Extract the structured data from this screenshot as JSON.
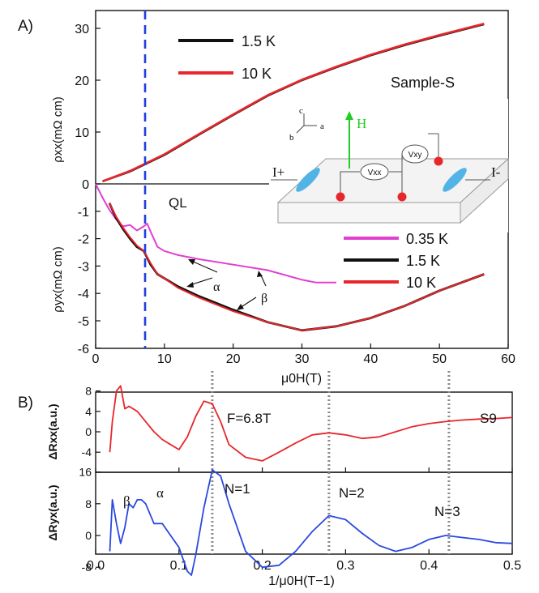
{
  "colors": {
    "black": "#111111",
    "red": "#e8262b",
    "magenta": "#e03fd0",
    "blue": "#2b48e0",
    "dash_blue": "#1f3fe0",
    "dotted_gray": "#8a8a8a",
    "green": "#22cc22",
    "sample_blue": "#52b4e6"
  },
  "panel_a": {
    "label": "A)",
    "ylabel_top": "ρxx(mΩ cm)",
    "ylabel_bottom": "ρyx(mΩ cm)",
    "xlabel": "μ0H(T)",
    "sample_label": "Sample-S",
    "ql_label": "QL",
    "legend_top": [
      {
        "name": "1.5 K",
        "color": "#111111"
      },
      {
        "name": "10 K",
        "color": "#e8262b"
      }
    ],
    "legend_bottom": [
      {
        "name": "0.35 K",
        "color": "#e03fd0"
      },
      {
        "name": "1.5 K",
        "color": "#111111"
      },
      {
        "name": "10 K",
        "color": "#e8262b"
      }
    ],
    "alpha": "α",
    "beta": "β",
    "inset": {
      "h_label": "H",
      "i_plus": "I+",
      "i_minus": "I-",
      "vxx": "Vxx",
      "vxy": "Vxy",
      "axis_a": "a",
      "axis_b": "b",
      "axis_c": "c"
    }
  },
  "panel_b": {
    "label": "B)",
    "ylabel_top": "ΔRxx(a.u.)",
    "ylabel_bottom": "ΔRyx(a.u.)",
    "xlabel": "1/μ0H(T−1)",
    "freq_label": "F=6.8T",
    "sample_label": "S9",
    "beta": "β",
    "alpha": "α",
    "n_labels": [
      "N=1",
      "N=2",
      "N=3"
    ]
  },
  "chart_data": [
    {
      "type": "line",
      "title": "",
      "xlabel": "μ0H(T)",
      "ylabel": "ρxx(mΩ cm)",
      "xlim": [
        0,
        60
      ],
      "ylim": [
        0,
        32
      ],
      "xticks": [
        0,
        10,
        20,
        30,
        40,
        50,
        60
      ],
      "yticks": [
        0,
        10,
        20,
        30
      ],
      "vline": 7.5,
      "series": [
        {
          "name": "1.5 K",
          "color": "#111111",
          "x": [
            1,
            5,
            10,
            15,
            20,
            25,
            30,
            35,
            40,
            45,
            50,
            56.5
          ],
          "y": [
            0.5,
            2.4,
            5.6,
            9.5,
            13.3,
            17.0,
            20.0,
            22.5,
            24.8,
            26.8,
            28.6,
            30.8
          ]
        },
        {
          "name": "10 K",
          "color": "#e8262b",
          "x": [
            1,
            5,
            10,
            15,
            20,
            25,
            30,
            35,
            40,
            45,
            50,
            56.5
          ],
          "y": [
            0.5,
            2.5,
            5.7,
            9.6,
            13.4,
            17.1,
            20.1,
            22.6,
            24.9,
            26.9,
            28.7,
            30.9
          ]
        }
      ]
    },
    {
      "type": "line",
      "title": "",
      "xlabel": "μ0H(T)",
      "ylabel": "ρyx(mΩ cm)",
      "xlim": [
        0,
        60
      ],
      "ylim": [
        -6,
        0
      ],
      "xticks": [
        0,
        10,
        20,
        30,
        40,
        50,
        60
      ],
      "yticks": [
        0,
        -1,
        -2,
        -3,
        -4,
        -5,
        -6
      ],
      "vline": 7.5,
      "series": [
        {
          "name": "0.35 K",
          "color": "#e03fd0",
          "x": [
            0,
            1,
            2,
            3,
            4,
            5,
            6,
            7,
            7.5,
            8,
            9,
            10,
            12,
            15,
            20,
            25,
            30,
            32,
            35
          ],
          "y": [
            0,
            -0.5,
            -0.95,
            -1.3,
            -1.55,
            -1.5,
            -1.7,
            -1.55,
            -1.45,
            -1.75,
            -2.3,
            -2.45,
            -2.6,
            -2.75,
            -2.95,
            -3.15,
            -3.5,
            -3.6,
            -3.6
          ]
        },
        {
          "name": "1.5 K",
          "color": "#111111",
          "x": [
            2,
            3,
            4,
            5,
            6,
            7,
            8,
            9,
            10,
            12,
            15,
            20,
            25,
            30,
            35,
            40,
            45,
            50,
            56.5
          ],
          "y": [
            -0.7,
            -1.25,
            -1.65,
            -2.0,
            -2.3,
            -2.45,
            -2.95,
            -3.3,
            -3.45,
            -3.75,
            -4.1,
            -4.6,
            -5.05,
            -5.35,
            -5.2,
            -4.9,
            -4.45,
            -3.9,
            -3.3
          ]
        },
        {
          "name": "10 K",
          "color": "#e8262b",
          "x": [
            2,
            3,
            4,
            5,
            6,
            7,
            8,
            9,
            10,
            12,
            15,
            20,
            25,
            30,
            35,
            40,
            45,
            50,
            56.5
          ],
          "y": [
            -0.7,
            -1.2,
            -1.6,
            -1.95,
            -2.25,
            -2.45,
            -2.9,
            -3.3,
            -3.45,
            -3.8,
            -4.15,
            -4.65,
            -5.05,
            -5.35,
            -5.2,
            -4.9,
            -4.45,
            -3.9,
            -3.3
          ]
        }
      ]
    },
    {
      "type": "line",
      "title": "",
      "xlabel": "1/μ0H(T−1)",
      "ylabel": "ΔRxx(a.u.)",
      "xlim": [
        0,
        0.5
      ],
      "ylim": [
        -6,
        10
      ],
      "yticks": [
        8,
        4,
        0,
        -4
      ],
      "vlines": [
        0.14,
        0.28,
        0.424
      ],
      "series": [
        {
          "name": "S9",
          "color": "#e8262b",
          "x": [
            0.017,
            0.02,
            0.025,
            0.03,
            0.035,
            0.04,
            0.05,
            0.06,
            0.07,
            0.08,
            0.09,
            0.1,
            0.11,
            0.12,
            0.13,
            0.14,
            0.15,
            0.16,
            0.18,
            0.2,
            0.22,
            0.24,
            0.26,
            0.28,
            0.3,
            0.32,
            0.34,
            0.36,
            0.38,
            0.4,
            0.42,
            0.44,
            0.46,
            0.48,
            0.5
          ],
          "y": [
            -4,
            2,
            8,
            9,
            4.5,
            5,
            4,
            2,
            0,
            -1.5,
            -2.5,
            -3.5,
            -1,
            3,
            6,
            5.5,
            2,
            -2.5,
            -5,
            -5.7,
            -4,
            -2.2,
            -0.6,
            -0.2,
            -0.6,
            -1.3,
            -1.0,
            0,
            1,
            1.6,
            2.0,
            2.3,
            2.5,
            2.6,
            2.8
          ]
        }
      ]
    },
    {
      "type": "line",
      "title": "",
      "xlabel": "1/μ0H(T−1)",
      "ylabel": "ΔRyx(a.u.)",
      "xlim": [
        0,
        0.5
      ],
      "ylim": [
        -12,
        18
      ],
      "xticks": [
        0.0,
        0.1,
        0.2,
        0.3,
        0.4,
        0.5
      ],
      "yticks": [
        16,
        8,
        0,
        -8
      ],
      "vlines": [
        0.14,
        0.28,
        0.424
      ],
      "series": [
        {
          "name": "S9",
          "color": "#2b48e0",
          "x": [
            0.017,
            0.02,
            0.025,
            0.03,
            0.035,
            0.04,
            0.045,
            0.05,
            0.055,
            0.06,
            0.07,
            0.08,
            0.09,
            0.1,
            0.11,
            0.115,
            0.12,
            0.13,
            0.14,
            0.15,
            0.16,
            0.18,
            0.2,
            0.22,
            0.24,
            0.26,
            0.28,
            0.3,
            0.32,
            0.34,
            0.36,
            0.38,
            0.4,
            0.42,
            0.44,
            0.46,
            0.48,
            0.5
          ],
          "y": [
            -4,
            9,
            3,
            -2,
            2,
            8,
            7,
            9,
            9,
            8,
            3,
            3,
            0,
            -3,
            -9,
            -10,
            -5,
            7,
            16.5,
            15,
            8,
            -4,
            -8,
            -7.5,
            -4,
            1,
            5,
            4,
            0.5,
            -2.5,
            -4,
            -3,
            -1,
            0,
            -0.5,
            -1,
            -1.8,
            -2
          ]
        }
      ]
    }
  ]
}
